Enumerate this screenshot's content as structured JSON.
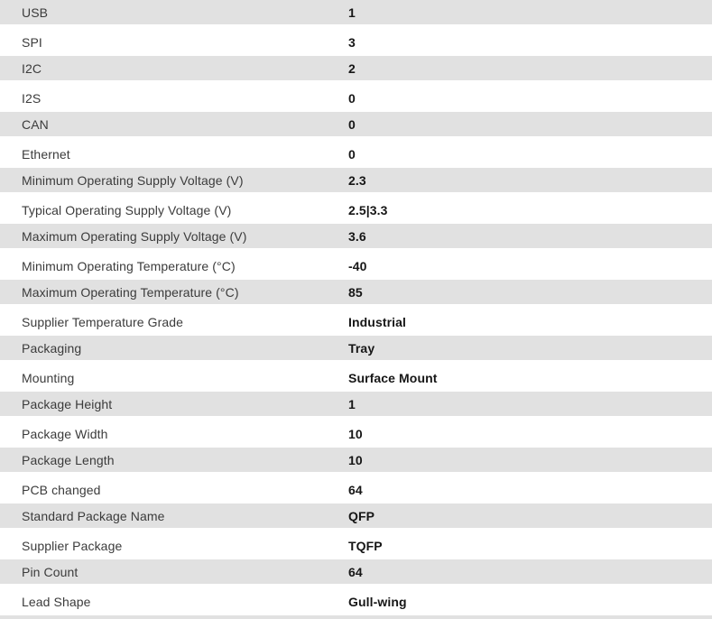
{
  "spec_table": {
    "rows": [
      {
        "label": "USB",
        "value": "1"
      },
      {
        "label": "SPI",
        "value": "3"
      },
      {
        "label": "I2C",
        "value": "2"
      },
      {
        "label": "I2S",
        "value": "0"
      },
      {
        "label": "CAN",
        "value": "0"
      },
      {
        "label": "Ethernet",
        "value": "0"
      },
      {
        "label": "Minimum Operating Supply Voltage (V)",
        "value": "2.3"
      },
      {
        "label": "Typical Operating Supply Voltage (V)",
        "value": "2.5|3.3"
      },
      {
        "label": "Maximum Operating Supply Voltage (V)",
        "value": "3.6"
      },
      {
        "label": "Minimum Operating Temperature (°C)",
        "value": "-40"
      },
      {
        "label": "Maximum Operating Temperature (°C)",
        "value": "85"
      },
      {
        "label": "Supplier Temperature Grade",
        "value": "Industrial"
      },
      {
        "label": "Packaging",
        "value": "Tray"
      },
      {
        "label": "Mounting",
        "value": "Surface Mount"
      },
      {
        "label": "Package Height",
        "value": "1"
      },
      {
        "label": "Package Width",
        "value": "10"
      },
      {
        "label": "Package Length",
        "value": "10"
      },
      {
        "label": "PCB changed",
        "value": "64"
      },
      {
        "label": "Standard Package Name",
        "value": "QFP"
      },
      {
        "label": "Supplier Package",
        "value": "TQFP"
      },
      {
        "label": "Pin Count",
        "value": "64"
      },
      {
        "label": "Lead Shape",
        "value": "Gull-wing"
      }
    ],
    "colors": {
      "row_alt_bg": "#e1e1e1",
      "row_bg": "#ffffff",
      "label_text": "#3b3b3b",
      "value_text": "#161616"
    }
  }
}
